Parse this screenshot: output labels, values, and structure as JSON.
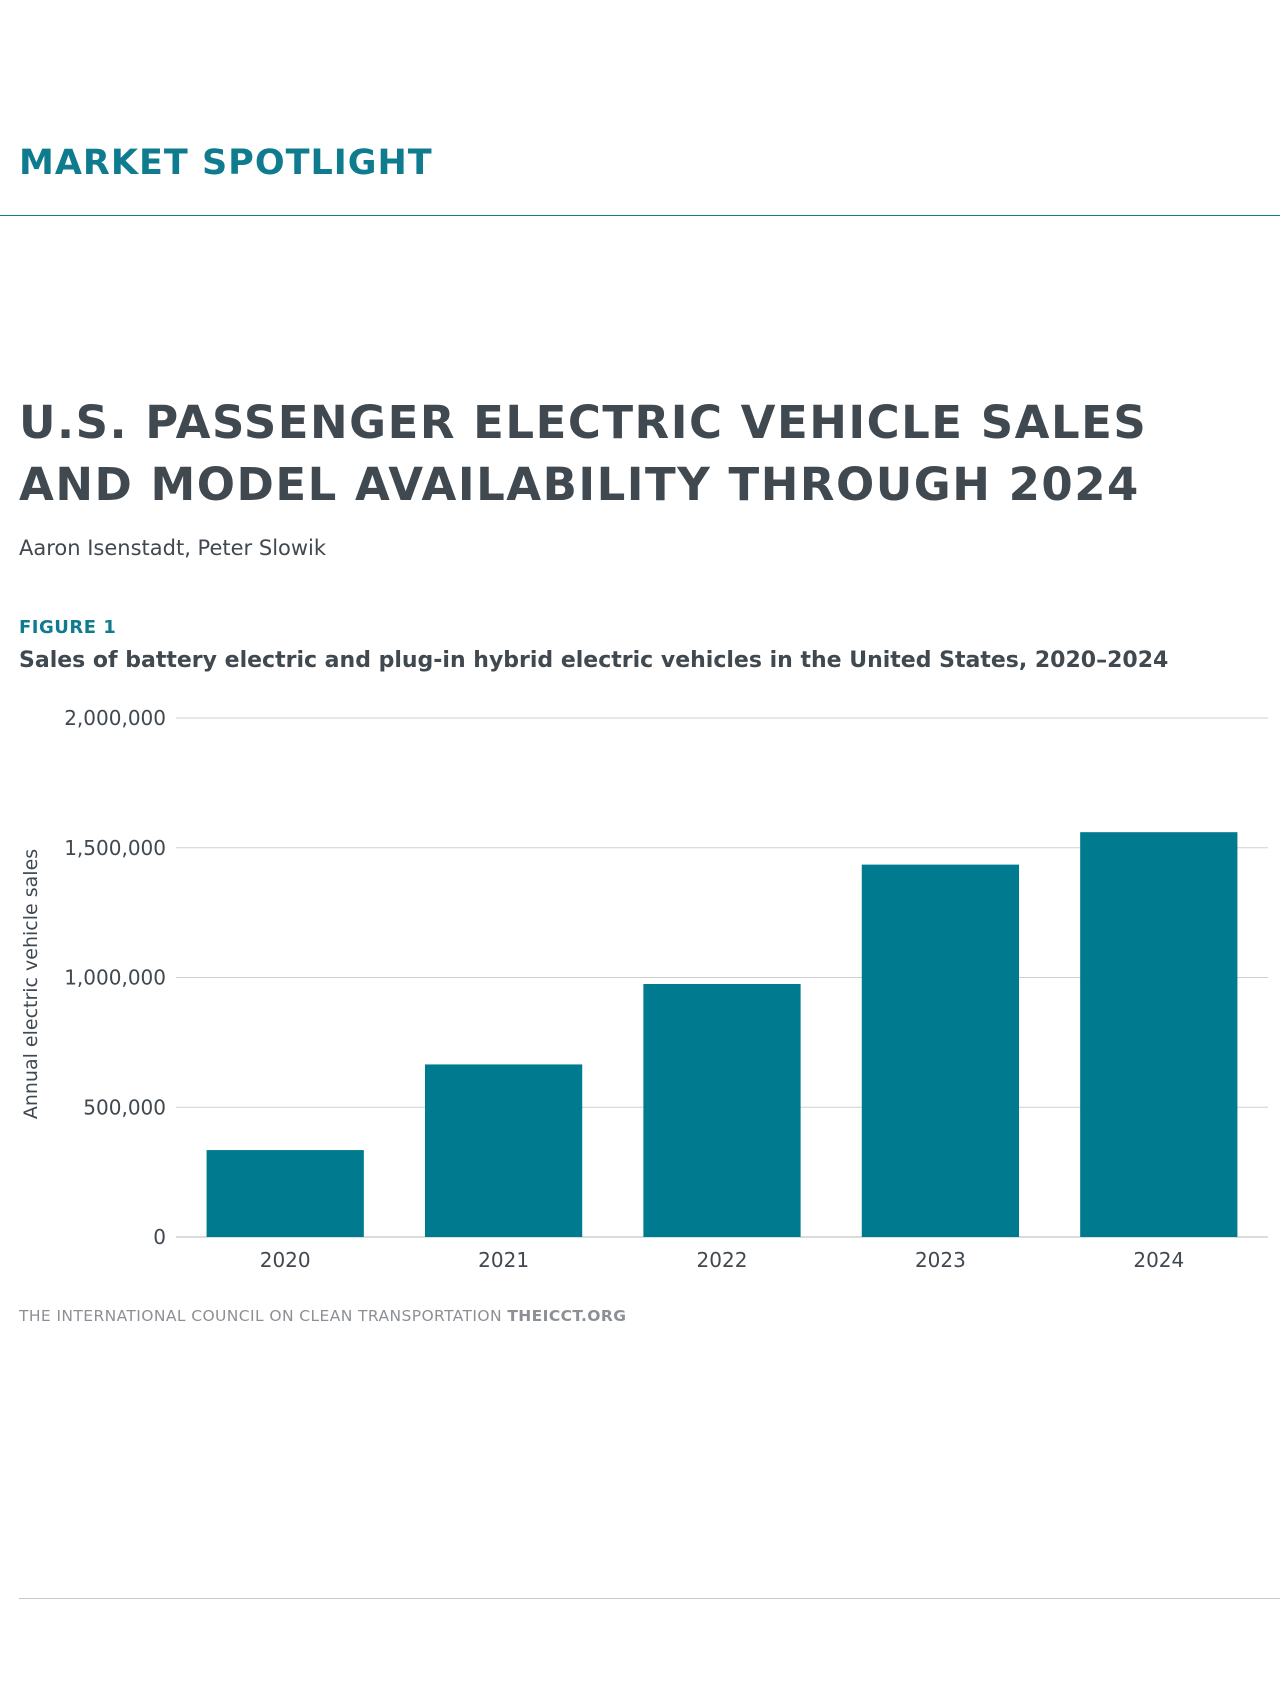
{
  "header": {
    "section_title": "MARKET SPOTLIGHT"
  },
  "document": {
    "title_line1": "U.S. PASSENGER ELECTRIC VEHICLE SALES",
    "title_line2": "AND MODEL AVAILABILITY THROUGH 2024",
    "authors": "Aaron Isenstadt, Peter Slowik"
  },
  "figure": {
    "label": "FIGURE 1",
    "caption": "Sales of battery electric and plug-in hybrid electric vehicles in the United States, 2020–2024"
  },
  "footer": {
    "org": "THE INTERNATIONAL COUNCIL ON CLEAN TRANSPORTATION",
    "url": "THEICCT.ORG"
  },
  "colors": {
    "accent": "#0e7c8e",
    "bar": "#007a8f",
    "text": "#404850",
    "grid": "#d0d0d0"
  },
  "chart_data": {
    "type": "bar",
    "title": "Sales of battery electric and plug-in hybrid electric vehicles in the United States, 2020–2024",
    "xlabel": "",
    "ylabel": "Annual electric vehicle sales",
    "categories": [
      "2020",
      "2021",
      "2022",
      "2023",
      "2024"
    ],
    "values": [
      335000,
      665000,
      975000,
      1435000,
      1560000
    ],
    "ylim": [
      0,
      2000000
    ],
    "yticks": [
      0,
      500000,
      1000000,
      1500000,
      2000000
    ],
    "ytick_labels": [
      "0",
      "500,000",
      "1,000,000",
      "1,500,000",
      "2,000,000"
    ],
    "grid": true,
    "legend": "none"
  }
}
